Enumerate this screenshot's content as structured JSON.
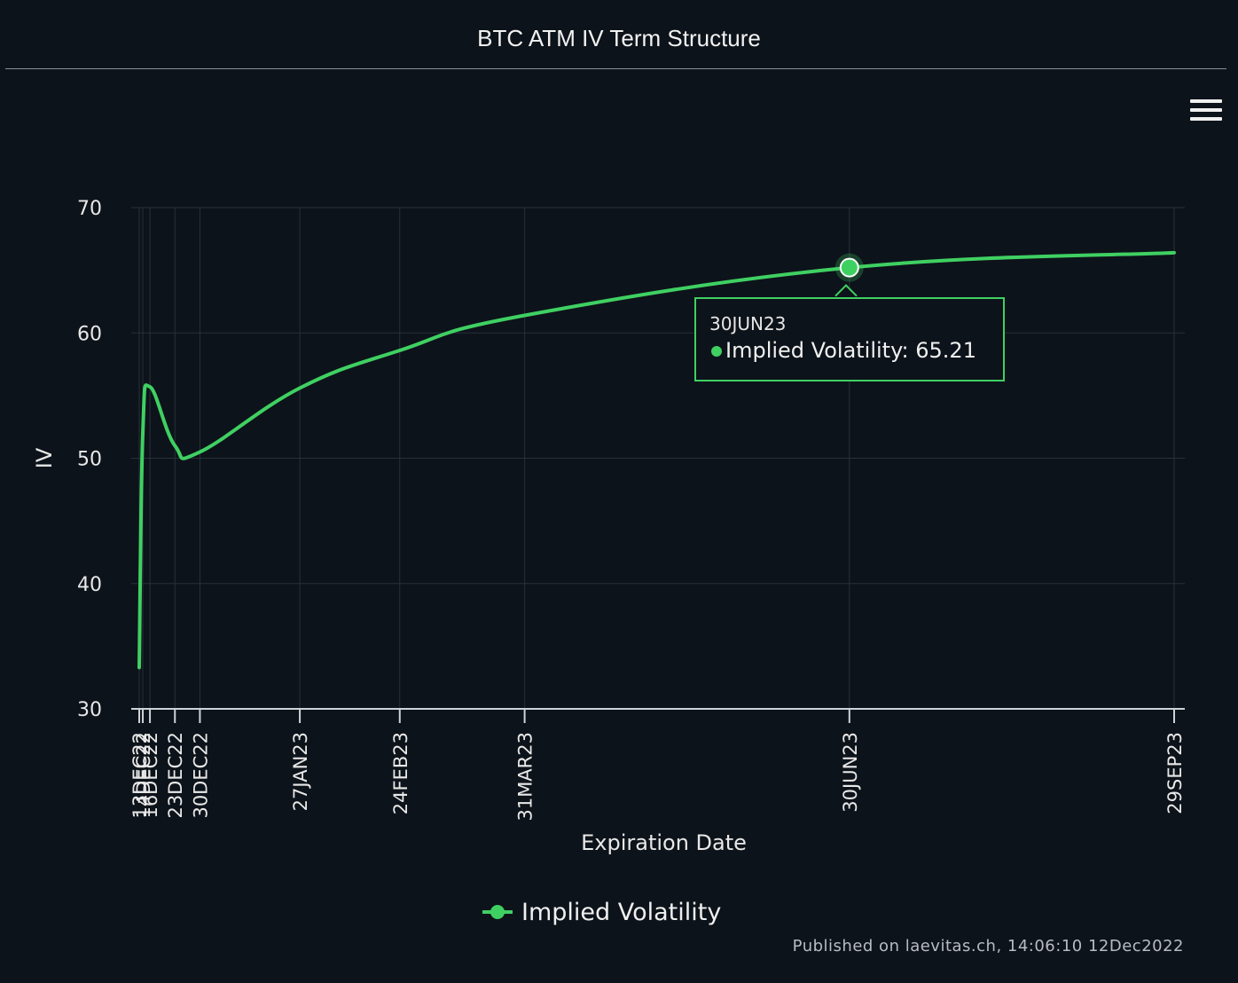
{
  "title": "BTC ATM IV Term Structure",
  "menu": {
    "icon": "hamburger-menu-icon"
  },
  "colors": {
    "background": "#0d131a",
    "series": "#3fd062",
    "grid": "#2a3038",
    "text": "#e8e8e8"
  },
  "chart_data": {
    "type": "line",
    "title": "BTC ATM IV Term Structure",
    "xlabel": "Expiration Date",
    "ylabel": "IV",
    "ylim": [
      30,
      70
    ],
    "yticks": [
      30,
      40,
      50,
      60,
      70
    ],
    "grid": true,
    "legend_position": "bottom-center",
    "x": [
      "13DEC22",
      "14DEC22",
      "16DEC22",
      "23DEC22",
      "30DEC22",
      "27JAN23",
      "24FEB23",
      "31MAR23",
      "30JUN23",
      "29SEP23"
    ],
    "series": [
      {
        "name": "Implied Volatility",
        "color": "#3fd062",
        "values": [
          33.3,
          52.0,
          55.7,
          51.0,
          50.5,
          55.6,
          58.6,
          61.4,
          65.21,
          66.4
        ]
      }
    ]
  },
  "tooltip": {
    "date": "30JUN23",
    "label": "Implied Volatility: 65.21"
  },
  "legend": {
    "label": "Implied Volatility"
  },
  "credits": "Published on laevitas.ch, 14:06:10 12Dec2022"
}
